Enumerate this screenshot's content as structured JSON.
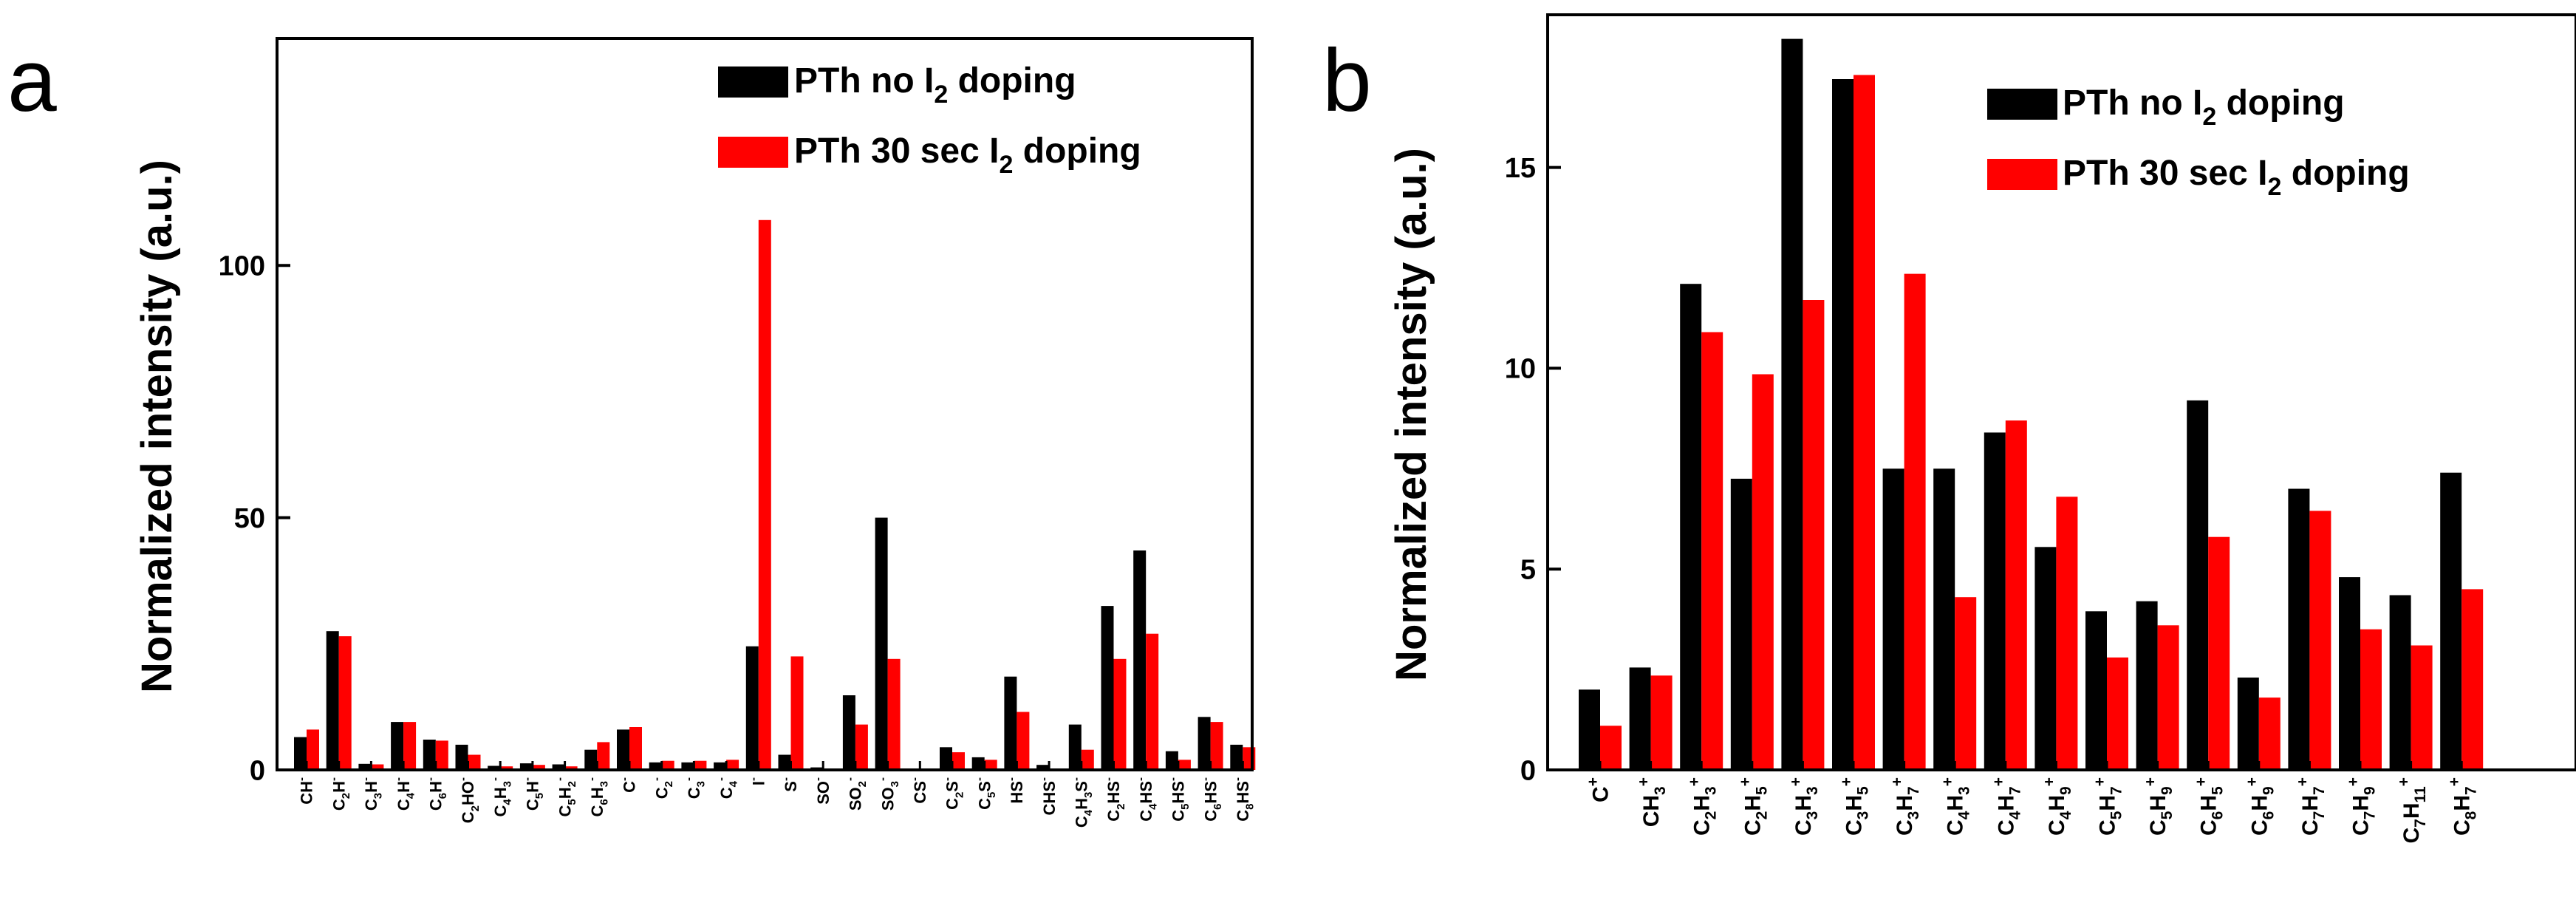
{
  "colors": {
    "series_a": "#000000",
    "series_b": "#ff0000",
    "axis": "#000000"
  },
  "chart_data": [
    {
      "type": "bar",
      "panel_label": "a",
      "ylabel": "Normalized intensity (a.u.)",
      "ylim": [
        0,
        145
      ],
      "yticks": [
        0,
        50,
        100
      ],
      "legend_position": "top-right",
      "categories": [
        {
          "base": "CH",
          "sup": "-"
        },
        {
          "base": "C",
          "sub": "2",
          "base2": "H",
          "sup": "-"
        },
        {
          "base": "C",
          "sub": "3",
          "base2": "H",
          "sup": "-"
        },
        {
          "base": "C",
          "sub": "4",
          "base2": "H",
          "sup": "-"
        },
        {
          "base": "C",
          "sub": "6",
          "base2": "H",
          "sup": "-"
        },
        {
          "base": "C",
          "sub": "2",
          "base2": "HO",
          "sup": "-"
        },
        {
          "base": "C",
          "sub": "4",
          "base2": "H",
          "sub2": "3",
          "sup": "-"
        },
        {
          "base": "C",
          "sub": "5",
          "base2": "H",
          "sup": "-"
        },
        {
          "base": "C",
          "sub": "5",
          "base2": "H",
          "sub2": "2",
          "sup": "-"
        },
        {
          "base": "C",
          "sub": "6",
          "base2": "H",
          "sub2": "3",
          "sup": "-"
        },
        {
          "base": "C",
          "sup": "-"
        },
        {
          "base": "C",
          "sub": "2",
          "sup": "-"
        },
        {
          "base": "C",
          "sub": "3",
          "sup": "-"
        },
        {
          "base": "C",
          "sub": "4",
          "sup": "-"
        },
        {
          "base": "I",
          "sup": "-"
        },
        {
          "base": "S",
          "sup": "-"
        },
        {
          "base": "SO",
          "sup": "-"
        },
        {
          "base": "SO",
          "sub": "2",
          "sup": "-"
        },
        {
          "base": "SO",
          "sub": "3",
          "sup": "-"
        },
        {
          "base": "CS",
          "sup": "-"
        },
        {
          "base": "C",
          "sub": "2",
          "base2": "S",
          "sup": "-"
        },
        {
          "base": "C",
          "sub": "5",
          "base2": "S",
          "sup": "-"
        },
        {
          "base": "HS",
          "sup": "-"
        },
        {
          "base": "CHS",
          "sup": "-"
        },
        {
          "base": "C",
          "sub": "4",
          "base2": "H",
          "sub2": "3",
          "base3": "S",
          "sup": "-"
        },
        {
          "base": "C",
          "sub": "2",
          "base2": "HS",
          "sup": "-"
        },
        {
          "base": "C",
          "sub": "4",
          "base2": "HS",
          "sup": "-"
        },
        {
          "base": "C",
          "sub": "5",
          "base2": "HS",
          "sup": "-"
        },
        {
          "base": "C",
          "sub": "6",
          "base2": "HS",
          "sup": "-"
        },
        {
          "base": "C",
          "sub": "8",
          "base2": "HS",
          "sup": "-"
        }
      ],
      "series": [
        {
          "name_pre": "PTh no I",
          "name_sub": "2",
          "name_post": " doping",
          "color": "#000000",
          "values": [
            6.5,
            27.5,
            1.2,
            9.5,
            6,
            5,
            0.8,
            1.3,
            1.1,
            4,
            8,
            1.5,
            1.5,
            1.5,
            24.5,
            3,
            0.5,
            14.8,
            50,
            0.2,
            4.5,
            2.5,
            18.5,
            1,
            9,
            32.5,
            43.5,
            3.7,
            10.5,
            5
          ]
        },
        {
          "name_pre": "PTh 30 sec I",
          "name_sub": "2",
          "name_post": " doping",
          "color": "#ff0000",
          "values": [
            8,
            26.5,
            1.1,
            9.5,
            5.8,
            3,
            0.7,
            1,
            0.7,
            5.5,
            8.5,
            1.8,
            1.8,
            2,
            109,
            22.5,
            0.3,
            9,
            22,
            0.1,
            3.5,
            2,
            11.5,
            0.3,
            4,
            22,
            27,
            2,
            9.5,
            4.5
          ]
        }
      ]
    },
    {
      "type": "bar",
      "panel_label": "b",
      "ylabel": "Normalized intensity (a.u.)",
      "ylim": [
        0,
        18.8
      ],
      "yticks": [
        0,
        5,
        10,
        15
      ],
      "legend_position": "top-right",
      "categories": [
        {
          "base": "C",
          "sup": "+"
        },
        {
          "base": "CH",
          "sub": "3",
          "sup": "+"
        },
        {
          "base": "C",
          "sub": "2",
          "base2": "H",
          "sub2": "3",
          "sup": "+"
        },
        {
          "base": "C",
          "sub": "2",
          "base2": "H",
          "sub2": "5",
          "sup": "+"
        },
        {
          "base": "C",
          "sub": "3",
          "base2": "H",
          "sub2": "3",
          "sup": "+"
        },
        {
          "base": "C",
          "sub": "3",
          "base2": "H",
          "sub2": "5",
          "sup": "+"
        },
        {
          "base": "C",
          "sub": "3",
          "base2": "H",
          "sub2": "7",
          "sup": "+"
        },
        {
          "base": "C",
          "sub": "4",
          "base2": "H",
          "sub2": "3",
          "sup": "+"
        },
        {
          "base": "C",
          "sub": "4",
          "base2": "H",
          "sub2": "7",
          "sup": "+"
        },
        {
          "base": "C",
          "sub": "4",
          "base2": "H",
          "sub2": "9",
          "sup": "+"
        },
        {
          "base": "C",
          "sub": "5",
          "base2": "H",
          "sub2": "7",
          "sup": "+"
        },
        {
          "base": "C",
          "sub": "5",
          "base2": "H",
          "sub2": "9",
          "sup": "+"
        },
        {
          "base": "C",
          "sub": "6",
          "base2": "H",
          "sub2": "5",
          "sup": "+"
        },
        {
          "base": "C",
          "sub": "6",
          "base2": "H",
          "sub2": "9",
          "sup": "+"
        },
        {
          "base": "C",
          "sub": "7",
          "base2": "H",
          "sub2": "7",
          "sup": "+"
        },
        {
          "base": "C",
          "sub": "7",
          "base2": "H",
          "sub2": "9",
          "sup": "+"
        },
        {
          "base": "C",
          "sub": "7",
          "base2": "H",
          "sub2": "11",
          "sup": "+"
        },
        {
          "base": "C",
          "sub": "8",
          "base2": "H",
          "sub2": "7",
          "sup": "+"
        }
      ],
      "series": [
        {
          "name_pre": "PTh no I",
          "name_sub": "2",
          "name_post": " doping",
          "color": "#000000",
          "values": [
            2,
            2.55,
            12.1,
            7.25,
            18.2,
            17.2,
            7.5,
            7.5,
            8.4,
            5.55,
            3.95,
            4.2,
            9.2,
            2.3,
            7.0,
            4.8,
            4.35,
            7.4
          ]
        },
        {
          "name_pre": "PTh 30 sec I",
          "name_sub": "2",
          "name_post": " doping",
          "color": "#ff0000",
          "values": [
            1.1,
            2.35,
            10.9,
            9.85,
            11.7,
            17.3,
            12.35,
            4.3,
            8.7,
            6.8,
            2.8,
            3.6,
            5.8,
            1.8,
            6.45,
            3.5,
            3.1,
            4.5
          ]
        }
      ]
    }
  ]
}
